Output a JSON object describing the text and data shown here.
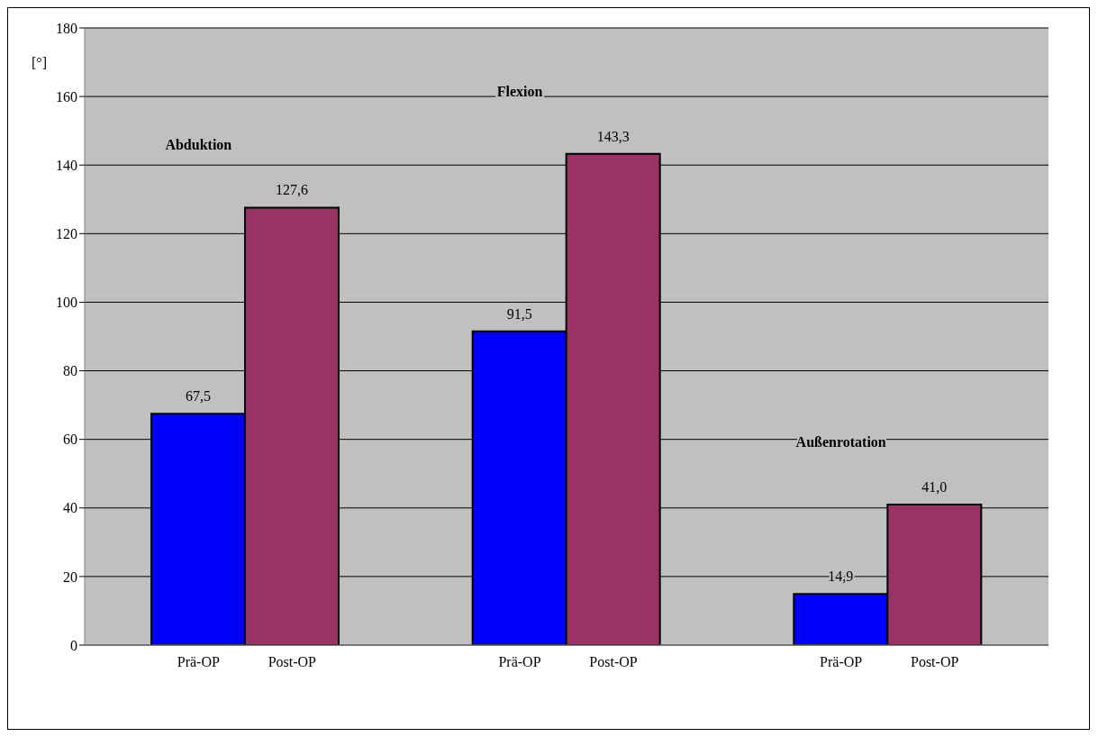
{
  "chart_data": {
    "type": "bar",
    "ylabel": "[°]",
    "categories": [
      "Abduktion",
      "Flexion",
      "Außenrotation"
    ],
    "series": [
      {
        "name": "Prä-OP",
        "color": "#0000ff",
        "values": [
          67.5,
          91.5,
          14.9
        ],
        "value_labels": [
          "67,5",
          "91,5",
          "14,9"
        ]
      },
      {
        "name": "Post-OP",
        "color": "#993366",
        "values": [
          127.6,
          143.3,
          41.0
        ],
        "value_labels": [
          "127,6",
          "143,3",
          "41,0"
        ]
      }
    ],
    "ylim": [
      0,
      180
    ],
    "yticks": [
      0,
      20,
      40,
      60,
      80,
      100,
      120,
      140,
      160,
      180
    ],
    "grid": "y"
  }
}
